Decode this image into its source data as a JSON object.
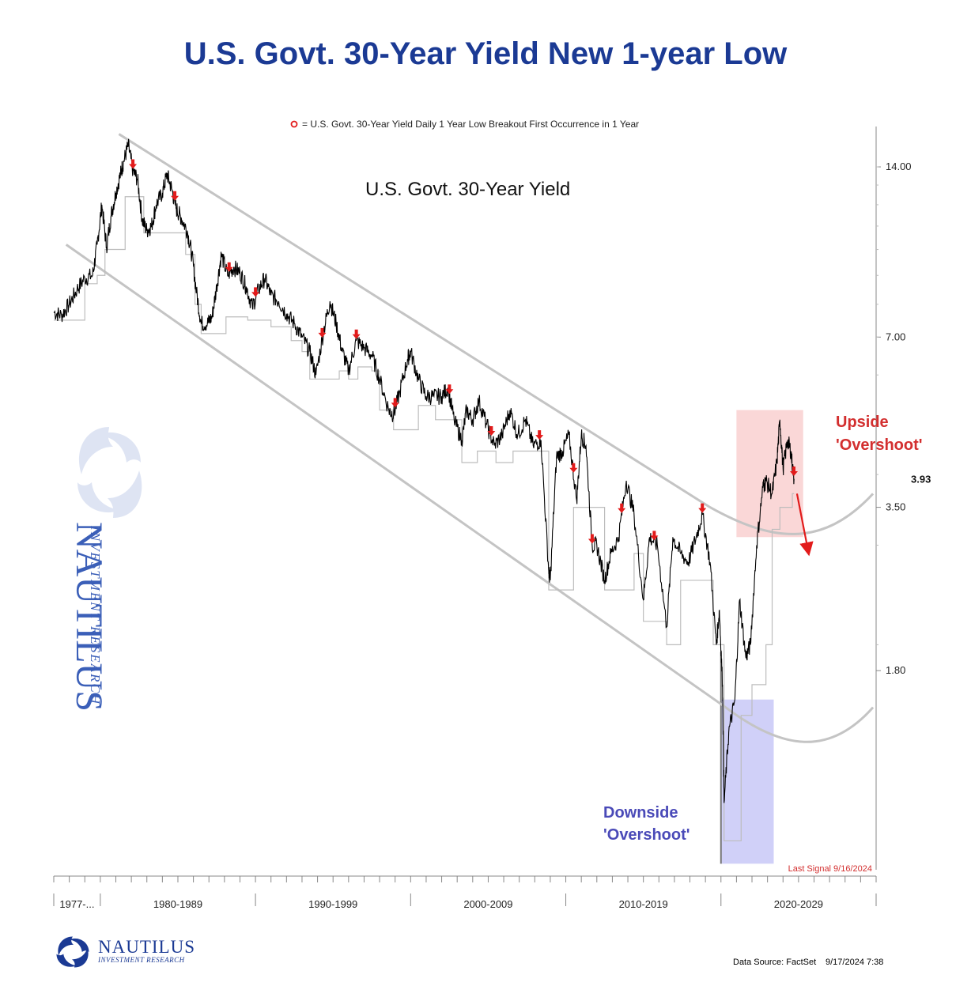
{
  "title": "U.S. Govt. 30-Year Yield New 1-year Low",
  "chart_data": {
    "type": "line",
    "title": "U.S. Govt. 30-Year Yield New 1-year Low",
    "series_label": "U.S. Govt. 30-Year Yield",
    "marker_legend": "= U.S. Govt. 30-Year Yield Daily 1 Year Low Breakout First Occurrence in 1 Year",
    "y_scale": "log",
    "ylim": [
      0.8,
      16.5
    ],
    "y_ticks": [
      {
        "value": 14.0,
        "label": "14.00"
      },
      {
        "value": 7.0,
        "label": "7.00"
      },
      {
        "value": 3.5,
        "label": "3.50"
      },
      {
        "value": 1.8,
        "label": "1.80"
      }
    ],
    "last_value": {
      "value": 3.93,
      "label": "3.93"
    },
    "xlim": [
      1977.0,
      2030.0
    ],
    "x_decade_labels": [
      {
        "label": "1977-...",
        "start": 1977.0,
        "end": 1980.0
      },
      {
        "label": "1980-1989",
        "start": 1980.0,
        "end": 1990.0
      },
      {
        "label": "1990-1999",
        "start": 1990.0,
        "end": 2000.0
      },
      {
        "label": "2000-2009",
        "start": 2000.0,
        "end": 2010.0
      },
      {
        "label": "2010-2019",
        "start": 2010.0,
        "end": 2020.0
      },
      {
        "label": "2020-2029",
        "start": 2020.0,
        "end": 2030.0
      }
    ],
    "yield_series": [
      [
        1977.0,
        7.75
      ],
      [
        1977.5,
        7.65
      ],
      [
        1978.0,
        8.0
      ],
      [
        1978.5,
        8.5
      ],
      [
        1979.0,
        8.9
      ],
      [
        1979.5,
        9.0
      ],
      [
        1979.8,
        10.2
      ],
      [
        1980.1,
        12.0
      ],
      [
        1980.4,
        10.1
      ],
      [
        1980.7,
        11.5
      ],
      [
        1981.0,
        12.6
      ],
      [
        1981.3,
        13.6
      ],
      [
        1981.5,
        14.3
      ],
      [
        1981.8,
        15.3
      ],
      [
        1982.1,
        13.8
      ],
      [
        1982.4,
        13.3
      ],
      [
        1982.7,
        11.3
      ],
      [
        1983.0,
        10.8
      ],
      [
        1983.3,
        11.0
      ],
      [
        1983.6,
        12.0
      ],
      [
        1984.0,
        12.6
      ],
      [
        1984.3,
        13.6
      ],
      [
        1984.6,
        12.8
      ],
      [
        1984.9,
        11.8
      ],
      [
        1985.2,
        11.4
      ],
      [
        1985.6,
        10.8
      ],
      [
        1985.9,
        9.8
      ],
      [
        1986.2,
        8.4
      ],
      [
        1986.5,
        7.4
      ],
      [
        1986.9,
        7.4
      ],
      [
        1987.2,
        7.6
      ],
      [
        1987.5,
        8.6
      ],
      [
        1987.8,
        9.8
      ],
      [
        1988.2,
        9.0
      ],
      [
        1988.6,
        9.3
      ],
      [
        1989.0,
        9.1
      ],
      [
        1989.4,
        8.6
      ],
      [
        1989.8,
        7.9
      ],
      [
        1990.2,
        8.5
      ],
      [
        1990.6,
        8.9
      ],
      [
        1991.0,
        8.3
      ],
      [
        1991.5,
        8.1
      ],
      [
        1992.0,
        7.7
      ],
      [
        1992.5,
        7.4
      ],
      [
        1993.0,
        7.0
      ],
      [
        1993.5,
        6.6
      ],
      [
        1993.9,
        6.0
      ],
      [
        1994.4,
        7.2
      ],
      [
        1994.8,
        8.1
      ],
      [
        1995.2,
        7.4
      ],
      [
        1995.6,
        6.6
      ],
      [
        1996.0,
        6.1
      ],
      [
        1996.5,
        6.9
      ],
      [
        1997.0,
        6.7
      ],
      [
        1997.5,
        6.5
      ],
      [
        1998.0,
        5.9
      ],
      [
        1998.6,
        5.2
      ],
      [
        1998.9,
        5.1
      ],
      [
        1999.3,
        5.6
      ],
      [
        1999.8,
        6.4
      ],
      [
        2000.0,
        6.6
      ],
      [
        2000.5,
        5.9
      ],
      [
        2001.0,
        5.5
      ],
      [
        2001.5,
        5.5
      ],
      [
        2002.0,
        5.5
      ],
      [
        2002.4,
        5.7
      ],
      [
        2002.8,
        5.0
      ],
      [
        2003.3,
        4.6
      ],
      [
        2003.6,
        5.2
      ],
      [
        2004.0,
        5.0
      ],
      [
        2004.4,
        5.4
      ],
      [
        2004.9,
        4.9
      ],
      [
        2005.4,
        4.5
      ],
      [
        2005.9,
        4.7
      ],
      [
        2006.4,
        5.2
      ],
      [
        2006.9,
        4.7
      ],
      [
        2007.4,
        5.0
      ],
      [
        2007.9,
        4.5
      ],
      [
        2008.4,
        4.6
      ],
      [
        2008.9,
        2.7
      ],
      [
        2009.0,
        2.6
      ],
      [
        2009.4,
        4.3
      ],
      [
        2009.8,
        4.4
      ],
      [
        2010.2,
        4.7
      ],
      [
        2010.7,
        3.6
      ],
      [
        2011.0,
        4.7
      ],
      [
        2011.3,
        4.5
      ],
      [
        2011.7,
        3.0
      ],
      [
        2012.0,
        3.0
      ],
      [
        2012.5,
        2.6
      ],
      [
        2012.9,
        2.9
      ],
      [
        2013.4,
        3.1
      ],
      [
        2013.9,
        3.9
      ],
      [
        2014.4,
        3.4
      ],
      [
        2015.0,
        2.4
      ],
      [
        2015.4,
        3.1
      ],
      [
        2015.9,
        3.0
      ],
      [
        2016.5,
        2.15
      ],
      [
        2016.9,
        3.1
      ],
      [
        2017.4,
        2.9
      ],
      [
        2017.9,
        2.8
      ],
      [
        2018.4,
        3.1
      ],
      [
        2018.8,
        3.4
      ],
      [
        2019.3,
        2.8
      ],
      [
        2019.7,
        2.0
      ],
      [
        2019.9,
        2.3
      ],
      [
        2020.1,
        1.7
      ],
      [
        2020.2,
        1.05
      ],
      [
        2020.5,
        1.4
      ],
      [
        2020.9,
        1.6
      ],
      [
        2021.2,
        2.4
      ],
      [
        2021.6,
        1.9
      ],
      [
        2021.9,
        2.0
      ],
      [
        2022.3,
        3.0
      ],
      [
        2022.7,
        3.8
      ],
      [
        2022.9,
        3.9
      ],
      [
        2023.3,
        3.7
      ],
      [
        2023.6,
        4.2
      ],
      [
        2023.8,
        5.0
      ],
      [
        2024.0,
        4.1
      ],
      [
        2024.3,
        4.6
      ],
      [
        2024.5,
        4.4
      ],
      [
        2024.71,
        3.93
      ]
    ],
    "low_band_series": [
      [
        1977.0,
        7.5
      ],
      [
        1979.0,
        8.7
      ],
      [
        1979.8,
        9.0
      ],
      [
        1980.3,
        10.0
      ],
      [
        1981.0,
        10.0
      ],
      [
        1981.6,
        12.4
      ],
      [
        1982.5,
        12.4
      ],
      [
        1982.8,
        10.7
      ],
      [
        1984.2,
        10.7
      ],
      [
        1985.0,
        10.7
      ],
      [
        1985.5,
        9.8
      ],
      [
        1986.1,
        8.0
      ],
      [
        1986.5,
        7.1
      ],
      [
        1987.4,
        7.1
      ],
      [
        1988.1,
        7.6
      ],
      [
        1989.0,
        7.6
      ],
      [
        1989.5,
        7.5
      ],
      [
        1990.3,
        7.5
      ],
      [
        1991.0,
        7.3
      ],
      [
        1991.6,
        7.3
      ],
      [
        1992.3,
        6.9
      ],
      [
        1993.0,
        6.6
      ],
      [
        1993.5,
        5.9
      ],
      [
        1994.9,
        5.9
      ],
      [
        1995.4,
        6.1
      ],
      [
        1996.0,
        5.9
      ],
      [
        1996.6,
        6.2
      ],
      [
        1997.5,
        6.1
      ],
      [
        1998.0,
        5.2
      ],
      [
        1998.9,
        4.8
      ],
      [
        1999.8,
        4.8
      ],
      [
        2000.5,
        5.3
      ],
      [
        2001.6,
        5.0
      ],
      [
        2002.3,
        5.0
      ],
      [
        2003.3,
        4.2
      ],
      [
        2004.3,
        4.4
      ],
      [
        2005.5,
        4.2
      ],
      [
        2006.6,
        4.4
      ],
      [
        2007.9,
        4.4
      ],
      [
        2008.9,
        2.5
      ],
      [
        2009.7,
        2.5
      ],
      [
        2010.5,
        3.5
      ],
      [
        2011.7,
        3.5
      ],
      [
        2012.5,
        2.5
      ],
      [
        2013.3,
        2.5
      ],
      [
        2014.4,
        2.9
      ],
      [
        2015.0,
        2.2
      ],
      [
        2016.5,
        2.0
      ],
      [
        2017.4,
        2.6
      ],
      [
        2018.6,
        2.6
      ],
      [
        2019.5,
        2.0
      ],
      [
        2020.2,
        0.9
      ],
      [
        2020.9,
        0.9
      ],
      [
        2021.3,
        1.5
      ],
      [
        2022.0,
        1.7
      ],
      [
        2022.9,
        2.0
      ],
      [
        2023.3,
        3.2
      ],
      [
        2023.8,
        3.5
      ],
      [
        2024.6,
        3.7
      ],
      [
        2024.71,
        3.7
      ]
    ],
    "signals": [
      1982.1,
      1984.8,
      1988.3,
      1990.0,
      1994.3,
      1996.5,
      1999.0,
      2002.5,
      2005.2,
      2008.3,
      2010.5,
      2011.7,
      2013.6,
      2015.7,
      2018.8,
      2024.7
    ],
    "channel_upper": [
      [
        1981.2,
        16.0
      ],
      [
        2019.3,
        3.5
      ]
    ],
    "channel_lower": [
      [
        1977.8,
        10.2
      ],
      [
        2020.3,
        1.55
      ]
    ],
    "curve_upper": [
      [
        2019.3,
        3.5
      ],
      [
        2023.2,
        3.05
      ],
      [
        2026.5,
        2.95
      ],
      [
        2029.8,
        3.7
      ]
    ],
    "curve_lower": [
      [
        2020.3,
        1.55
      ],
      [
        2024.0,
        1.3
      ],
      [
        2027.0,
        1.27
      ],
      [
        2029.8,
        1.55
      ]
    ],
    "annotations": {
      "upside_line1": "Upside",
      "upside_line2": "'Overshoot'",
      "downside_line1": "Downside",
      "downside_line2": "'Overshoot'",
      "last_signal": "Last Signal 9/16/2024"
    },
    "upside_zone": {
      "x": [
        2021.0,
        2025.3
      ],
      "y": [
        3.1,
        5.2
      ]
    },
    "downside_zone": {
      "x": [
        2020.0,
        2023.4
      ],
      "y": [
        0.82,
        1.6
      ]
    },
    "projection_arrow": {
      "from": [
        2024.9,
        3.7
      ],
      "to": [
        2025.6,
        2.95
      ]
    },
    "colors": {
      "yield": "#000000",
      "low_band": "#bdbdbd",
      "channel": "#c4c4c4",
      "signal": "#e21b1b",
      "upside_zone": "#f8c9c9",
      "downside_zone": "#c8c8f7",
      "upside_text": "#d32f2f",
      "downside_text": "#4a4ab8",
      "title": "#1b3a94",
      "axis": "#888888"
    }
  },
  "footer": {
    "logo_name": "NAUTILUS",
    "logo_sub": "INVESTMENT RESEARCH",
    "data_source": "Data Source: FactSet",
    "date": "9/17/2024 7:38"
  }
}
